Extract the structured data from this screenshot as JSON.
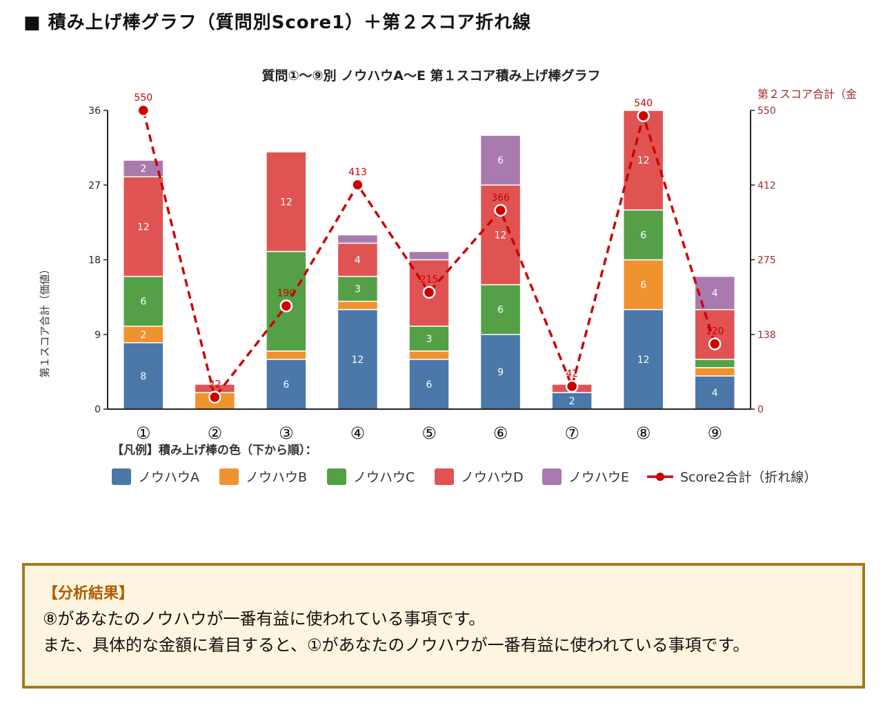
{
  "heading": "■ 積み上げ棒グラフ（質問別Score1）＋第２スコア折れ線",
  "chart_data": {
    "type": "bar",
    "stacked": true,
    "title": "質問①～⑨別 ノウハウA～E 第１スコア積み上げ棒グラフ",
    "ylabel": "第１スコア合計（価値）",
    "y2label": "第２スコア合計（金",
    "ylim": [
      0,
      36
    ],
    "yticks": [
      0,
      9,
      18,
      27,
      36
    ],
    "y2lim": [
      0,
      550
    ],
    "y2ticks": [
      "0",
      "138",
      "275",
      "412",
      "550"
    ],
    "categories": [
      "①",
      "②",
      "③",
      "④",
      "⑤",
      "⑥",
      "⑦",
      "⑧",
      "⑨"
    ],
    "series": [
      {
        "name": "ノウハウA",
        "color": "#4b77a9",
        "values": [
          8,
          0,
          6,
          12,
          6,
          9,
          2,
          12,
          4
        ],
        "labels": [
          "8",
          "",
          "6",
          "12",
          "6",
          "9",
          "2",
          "12",
          "4"
        ]
      },
      {
        "name": "ノウハウB",
        "color": "#f0922e",
        "values": [
          2,
          2,
          1,
          1,
          1,
          0,
          0,
          6,
          1
        ],
        "labels": [
          "2",
          "",
          "",
          "",
          "",
          "",
          "",
          "6",
          ""
        ]
      },
      {
        "name": "ノウハウC",
        "color": "#55a047",
        "values": [
          6,
          0,
          12,
          3,
          3,
          6,
          0,
          6,
          1
        ],
        "labels": [
          "6",
          "",
          "",
          "3",
          "3",
          "6",
          "",
          "6",
          ""
        ]
      },
      {
        "name": "ノウハウD",
        "color": "#e05353",
        "values": [
          12,
          1,
          12,
          4,
          8,
          12,
          1,
          12,
          6
        ],
        "labels": [
          "12",
          "",
          "12",
          "4",
          "",
          "12",
          "",
          "12",
          ""
        ]
      },
      {
        "name": "ノウハウE",
        "color": "#a97aae",
        "values": [
          2,
          0,
          0,
          1,
          1,
          6,
          0,
          0,
          4
        ],
        "labels": [
          "2",
          "",
          "",
          "",
          "",
          "6",
          "",
          "",
          "4"
        ]
      }
    ],
    "line": {
      "name": "Score2合計（折れ線）",
      "color": "#cc0000",
      "values": [
        550,
        22,
        190,
        413,
        215,
        366,
        42,
        540,
        120
      ],
      "labels": [
        "550",
        "22",
        "190",
        "413",
        "215",
        "366",
        "42",
        "540",
        "120"
      ]
    },
    "legend_prefix": "【凡例】積み上げ棒の色（下から順）："
  },
  "analysis": {
    "title": "【分析結果】",
    "line1": "⑧があなたのノウハウが一番有益に使われている事項です。",
    "line2": "また、具体的な金額に着目すると、①があなたのノウハウが一番有益に使われている事項です。"
  }
}
